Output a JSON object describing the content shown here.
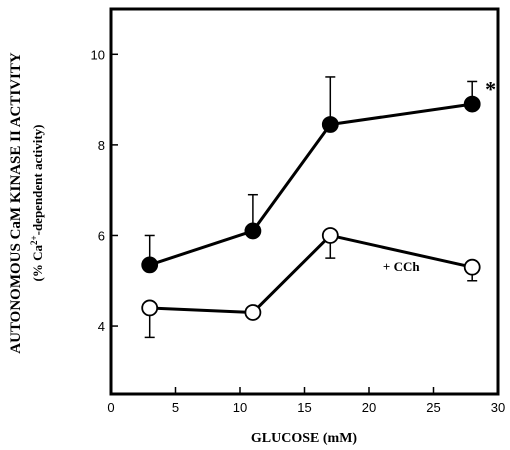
{
  "chart_data": {
    "type": "line",
    "title": "",
    "xlabel": "GLUCOSE (mM)",
    "ylabel": "AUTONOMOUS CaM KINASE II  ACTIVITY",
    "ylabel_sub_prefix": "(% Ca",
    "ylabel_sub_sup": "2+",
    "ylabel_sub_suffix": "-dependent activity)",
    "xlim": [
      0,
      30
    ],
    "ylim": [
      2.5,
      11
    ],
    "x_ticks": [
      0,
      5,
      10,
      15,
      20,
      25,
      30
    ],
    "y_ticks": [
      4,
      6,
      8,
      10
    ],
    "grid": false,
    "series": [
      {
        "marker": "filled-circle",
        "color": "#000000",
        "x": [
          3,
          11,
          17,
          28
        ],
        "y": [
          5.35,
          6.1,
          8.45,
          8.9
        ],
        "err_up": [
          0.65,
          0.8,
          1.05,
          0.5
        ]
      },
      {
        "marker": "open-circle",
        "color": "#000000",
        "x": [
          3,
          11,
          17,
          28
        ],
        "y": [
          4.4,
          4.3,
          6.0,
          5.3
        ],
        "err_down": [
          0.65,
          0.0,
          0.5,
          0.3
        ]
      }
    ],
    "annotations": [
      {
        "text": "+ CCh",
        "x": 22.5,
        "y": 5.3
      },
      {
        "text": "*",
        "x": 29.0,
        "y": 9.2
      }
    ]
  }
}
